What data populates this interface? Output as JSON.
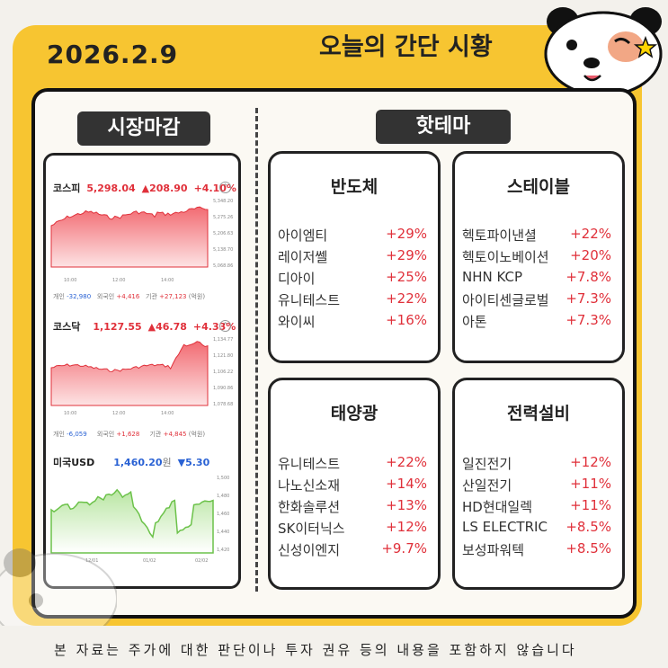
{
  "header": {
    "date": "2026.2.9",
    "title": "오늘의 간단 시황"
  },
  "market_close": {
    "label": "시장마감",
    "kospi": {
      "name": "코스피",
      "value": "5,298.04",
      "change": "▲208.90",
      "pct": "+4.10%",
      "y_ticks": [
        "5,348.20",
        "5,275.26",
        "5,206.63",
        "5,138.70",
        "5,068.86"
      ],
      "x_ticks": [
        "10:00",
        "12:00",
        "14:00"
      ],
      "flows": {
        "individual_label": "개인",
        "individual": "-32,980",
        "foreign_label": "외국인",
        "foreign": "+4,416",
        "inst_label": "기관",
        "inst": "+27,123",
        "unit": "(억원)"
      }
    },
    "kosdaq": {
      "name": "코스닥",
      "value": "1,127.55",
      "change": "▲46.78",
      "pct": "+4.33%",
      "y_ticks": [
        "1,134.77",
        "1,121.80",
        "1,106.22",
        "1,090.86",
        "1,078.68"
      ],
      "x_ticks": [
        "10:00",
        "12:00",
        "14:00"
      ],
      "flows": {
        "individual_label": "개인",
        "individual": "-6,059",
        "foreign_label": "외국인",
        "foreign": "+1,628",
        "inst_label": "기관",
        "inst": "+4,845",
        "unit": "(억원)"
      }
    },
    "usd": {
      "name": "미국USD",
      "value": "1,460.20",
      "unit": "원",
      "change": "▼5.30",
      "y_ticks": [
        "1,500",
        "1,480",
        "1,460",
        "1,440",
        "1,420"
      ],
      "x_ticks": [
        "12/01",
        "01/02",
        "02/02"
      ]
    }
  },
  "hot_theme": {
    "label": "핫테마",
    "cards": [
      {
        "name": "반도체",
        "items": [
          [
            "아이엠티",
            "+29%"
          ],
          [
            "레이저쎌",
            "+29%"
          ],
          [
            "디아이",
            "+25%"
          ],
          [
            "유니테스트",
            "+22%"
          ],
          [
            "와이씨",
            "+16%"
          ]
        ]
      },
      {
        "name": "스테이블",
        "items": [
          [
            "헥토파이낸셜",
            "+22%"
          ],
          [
            "헥토이노베이션",
            "+20%"
          ],
          [
            "NHN KCP",
            "+7.8%"
          ],
          [
            "아이티센글로벌",
            "+7.3%"
          ],
          [
            "아톤",
            "+7.3%"
          ]
        ]
      },
      {
        "name": "태양광",
        "items": [
          [
            "유니테스트",
            "+22%"
          ],
          [
            "나노신소재",
            "+14%"
          ],
          [
            "한화솔루션",
            "+13%"
          ],
          [
            "SK이터닉스",
            "+12%"
          ],
          [
            "신성이엔지",
            "+9.7%"
          ]
        ]
      },
      {
        "name": "전력설비",
        "items": [
          [
            "일진전기",
            "+12%"
          ],
          [
            "산일전기",
            "+11%"
          ],
          [
            "HD현대일렉",
            "+11%"
          ],
          [
            "LS ELECTRIC",
            "+8.5%"
          ],
          [
            "보성파워텍",
            "+8.5%"
          ]
        ]
      }
    ]
  },
  "disclaimer": "본 자료는 주가에 대한 판단이나 투자 권유 등의 내용을 포함하지 않습니다",
  "colors": {
    "frame": "#f7c531",
    "up": "#e0303a",
    "down": "#2a62d4",
    "usd_line": "#6cc24a"
  },
  "icons": {
    "mascot": "panda-mascot-icon",
    "collapse": "chevron-up-icon"
  }
}
